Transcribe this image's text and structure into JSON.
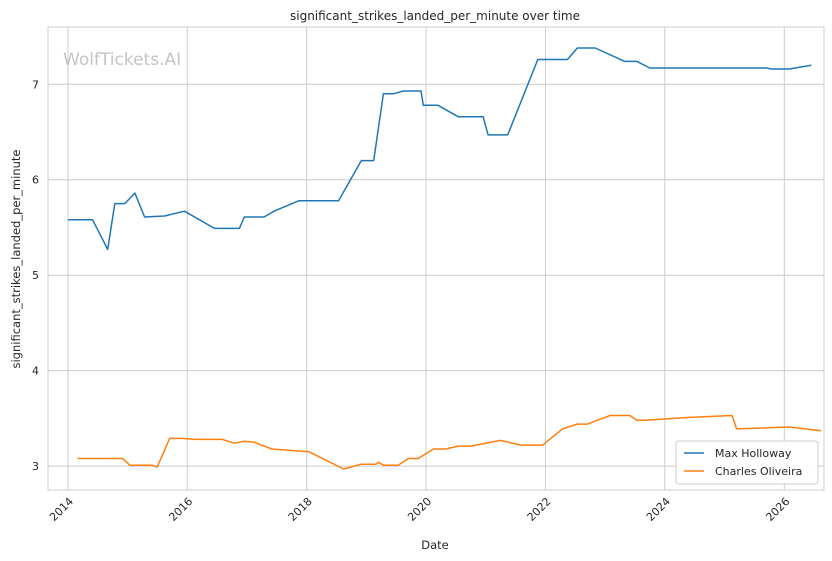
{
  "chart_data": {
    "type": "line",
    "title": "significant_strikes_landed_per_minute over time",
    "xlabel": "Date",
    "ylabel": "significant_strikes_landed_per_minute",
    "watermark": "WolfTickets.AI",
    "x_ticks": [
      "2014",
      "2016",
      "2018",
      "2020",
      "2022",
      "2024",
      "2026"
    ],
    "y_ticks": [
      "3",
      "4",
      "5",
      "6",
      "7"
    ],
    "xlim": [
      "2013-09-01",
      "2026-09-01"
    ],
    "ylim": [
      2.75,
      7.6
    ],
    "grid": true,
    "legend_position": "bottom-right",
    "series": [
      {
        "name": "Max Holloway",
        "color": "#1f77b4",
        "points": [
          [
            "2014-01-01",
            5.58
          ],
          [
            "2014-06-01",
            5.58
          ],
          [
            "2014-09-01",
            5.27
          ],
          [
            "2014-10-15",
            5.75
          ],
          [
            "2014-12-15",
            5.75
          ],
          [
            "2015-02-15",
            5.86
          ],
          [
            "2015-04-15",
            5.61
          ],
          [
            "2015-08-15",
            5.62
          ],
          [
            "2015-12-15",
            5.67
          ],
          [
            "2016-06-15",
            5.49
          ],
          [
            "2016-11-15",
            5.49
          ],
          [
            "2016-12-15",
            5.61
          ],
          [
            "2017-04-15",
            5.61
          ],
          [
            "2017-06-15",
            5.67
          ],
          [
            "2017-11-15",
            5.78
          ],
          [
            "2018-07-15",
            5.78
          ],
          [
            "2018-12-01",
            6.2
          ],
          [
            "2019-02-15",
            6.2
          ],
          [
            "2019-04-15",
            6.9
          ],
          [
            "2019-06-15",
            6.9
          ],
          [
            "2019-08-15",
            6.93
          ],
          [
            "2019-12-01",
            6.93
          ],
          [
            "2019-12-15",
            6.78
          ],
          [
            "2020-03-15",
            6.78
          ],
          [
            "2020-07-15",
            6.66
          ],
          [
            "2020-12-15",
            6.66
          ],
          [
            "2021-01-15",
            6.47
          ],
          [
            "2021-05-15",
            6.47
          ],
          [
            "2021-11-15",
            7.26
          ],
          [
            "2022-05-15",
            7.26
          ],
          [
            "2022-07-15",
            7.38
          ],
          [
            "2022-11-01",
            7.38
          ],
          [
            "2023-05-01",
            7.24
          ],
          [
            "2023-07-15",
            7.24
          ],
          [
            "2023-10-01",
            7.17
          ],
          [
            "2024-06-01",
            7.17
          ],
          [
            "2025-09-15",
            7.17
          ],
          [
            "2025-10-15",
            7.16
          ],
          [
            "2026-02-01",
            7.16
          ],
          [
            "2026-06-15",
            7.2
          ]
        ]
      },
      {
        "name": "Charles Oliveira",
        "color": "#ff7f0e",
        "points": [
          [
            "2014-03-01",
            3.08
          ],
          [
            "2014-12-01",
            3.08
          ],
          [
            "2015-01-15",
            3.01
          ],
          [
            "2015-06-01",
            3.01
          ],
          [
            "2015-07-01",
            2.99
          ],
          [
            "2015-09-15",
            3.29
          ],
          [
            "2015-12-01",
            3.29
          ],
          [
            "2016-02-15",
            3.28
          ],
          [
            "2016-08-01",
            3.28
          ],
          [
            "2016-10-15",
            3.24
          ],
          [
            "2016-12-15",
            3.26
          ],
          [
            "2017-02-15",
            3.25
          ],
          [
            "2017-06-01",
            3.18
          ],
          [
            "2018-01-15",
            3.15
          ],
          [
            "2018-08-15",
            2.97
          ],
          [
            "2018-12-01",
            3.02
          ],
          [
            "2019-03-01",
            3.02
          ],
          [
            "2019-03-15",
            3.04
          ],
          [
            "2019-04-15",
            3.01
          ],
          [
            "2019-07-15",
            3.01
          ],
          [
            "2019-09-15",
            3.08
          ],
          [
            "2019-11-15",
            3.08
          ],
          [
            "2020-02-15",
            3.18
          ],
          [
            "2020-05-01",
            3.18
          ],
          [
            "2020-07-15",
            3.21
          ],
          [
            "2020-10-01",
            3.21
          ],
          [
            "2021-04-01",
            3.27
          ],
          [
            "2021-08-01",
            3.22
          ],
          [
            "2021-12-15",
            3.22
          ],
          [
            "2022-04-15",
            3.39
          ],
          [
            "2022-07-15",
            3.44
          ],
          [
            "2022-09-15",
            3.44
          ],
          [
            "2023-02-01",
            3.53
          ],
          [
            "2023-06-01",
            3.53
          ],
          [
            "2023-07-15",
            3.48
          ],
          [
            "2023-09-01",
            3.48
          ],
          [
            "2024-06-01",
            3.51
          ],
          [
            "2025-02-15",
            3.53
          ],
          [
            "2025-03-15",
            3.39
          ],
          [
            "2026-02-01",
            3.41
          ],
          [
            "2026-08-15",
            3.37
          ]
        ]
      }
    ]
  }
}
